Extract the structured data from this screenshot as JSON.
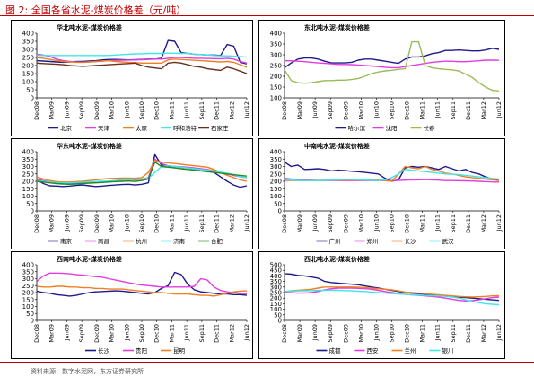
{
  "figure": {
    "title": "图 2:  全国各省水泥-煤炭价格差（元/吨）",
    "source": "资料来源：数字水泥网，东方证券研究所"
  },
  "colors": {
    "title_red": "#c00000",
    "navy": "#1f1a8c",
    "magenta": "#e23ce0",
    "orange": "#f07f23",
    "cyan": "#3ee6ea",
    "maroon": "#6b2e1f",
    "olive": "#9bbb59",
    "green": "#228b22"
  },
  "chart_data": [
    {
      "id": "north",
      "type": "line",
      "title": "华北吨水泥-煤炭价格差",
      "ylim": [
        0,
        400
      ],
      "yticks": [
        0,
        50,
        100,
        150,
        200,
        250,
        300,
        350,
        400
      ],
      "xticks": [
        "Dec08",
        "Mar09",
        "Jun09",
        "Sep09",
        "Dec09",
        "Mar10",
        "Jun10",
        "Sep10",
        "Dec10",
        "Mar11",
        "Jun11",
        "Sep11",
        "Dec11",
        "Mar12",
        "Jun12"
      ],
      "series": [
        {
          "name": "北京",
          "color": "#1f1a8c",
          "values": [
            230,
            228,
            225,
            222,
            220,
            222,
            225,
            225,
            228,
            230,
            235,
            238,
            238,
            236,
            235,
            236,
            238,
            240,
            240,
            245,
            355,
            350,
            280,
            275,
            270,
            268,
            265,
            265,
            262,
            330,
            320,
            220,
            210
          ]
        },
        {
          "name": "天津",
          "color": "#e23ce0",
          "values": [
            270,
            265,
            255,
            240,
            230,
            225,
            222,
            220,
            222,
            225,
            228,
            230,
            232,
            233,
            234,
            235,
            236,
            238,
            240,
            240,
            245,
            250,
            250,
            248,
            245,
            245,
            244,
            243,
            242,
            245,
            240,
            225,
            215
          ]
        },
        {
          "name": "太原",
          "color": "#f07f23",
          "values": [
            250,
            245,
            238,
            230,
            225,
            222,
            220,
            220,
            222,
            225,
            228,
            230,
            225,
            222,
            220,
            218,
            215,
            215,
            215,
            215,
            235,
            240,
            238,
            235,
            232,
            230,
            228,
            225,
            222,
            225,
            220,
            205,
            190
          ]
        },
        {
          "name": "呼和浩特",
          "color": "#3ee6ea",
          "values": [
            262,
            262,
            262,
            262,
            262,
            262,
            262,
            262,
            262,
            262,
            262,
            262,
            265,
            268,
            270,
            272,
            273,
            275,
            275,
            275,
            276,
            276,
            275,
            275,
            270,
            268,
            265,
            262,
            260,
            260,
            258,
            255,
            252
          ]
        },
        {
          "name": "石家庄",
          "color": "#6b2e1f",
          "values": [
            215,
            212,
            210,
            208,
            205,
            200,
            198,
            195,
            198,
            200,
            202,
            205,
            208,
            210,
            212,
            215,
            200,
            190,
            185,
            180,
            215,
            220,
            215,
            205,
            195,
            190,
            180,
            175,
            170,
            190,
            180,
            165,
            150
          ]
        }
      ]
    },
    {
      "id": "northeast",
      "type": "line",
      "title": "东北吨水泥-煤炭价格差",
      "ylim": [
        100,
        400
      ],
      "yticks": [
        100,
        150,
        200,
        250,
        300,
        350,
        400
      ],
      "xticks": [
        "Dec08",
        "Mar09",
        "Jun09",
        "Sep09",
        "Dec09",
        "Mar10",
        "Jun10",
        "Sep10",
        "Dec10",
        "Mar11",
        "Jun11",
        "Sep11",
        "Dec11",
        "Mar12",
        "Jun12"
      ],
      "series": [
        {
          "name": "哈尔滨",
          "color": "#1f1a8c",
          "values": [
            240,
            262,
            280,
            285,
            285,
            280,
            270,
            262,
            262,
            262,
            265,
            275,
            280,
            280,
            275,
            270,
            265,
            260,
            280,
            290,
            290,
            295,
            305,
            310,
            320,
            320,
            322,
            320,
            318,
            318,
            322,
            330,
            325
          ]
        },
        {
          "name": "沈阳",
          "color": "#e23ce0",
          "values": [
            272,
            272,
            270,
            268,
            265,
            262,
            260,
            258,
            255,
            255,
            254,
            252,
            250,
            248,
            245,
            242,
            240,
            240,
            245,
            250,
            255,
            260,
            265,
            268,
            270,
            270,
            268,
            268,
            270,
            272,
            275,
            275,
            274
          ]
        },
        {
          "name": "长春",
          "color": "#9bbb59",
          "values": [
            230,
            180,
            170,
            168,
            170,
            175,
            180,
            180,
            182,
            182,
            185,
            190,
            200,
            212,
            220,
            225,
            228,
            232,
            235,
            360,
            360,
            250,
            240,
            235,
            232,
            230,
            225,
            210,
            195,
            170,
            150,
            135,
            132
          ]
        }
      ]
    },
    {
      "id": "east",
      "type": "line",
      "title": "华东吨水泥-煤炭价格差",
      "ylim": [
        0,
        400
      ],
      "yticks": [
        0,
        50,
        100,
        150,
        200,
        250,
        300,
        350,
        400
      ],
      "xticks": [
        "Dec08",
        "Mar09",
        "Jun09",
        "Sep09",
        "Dec09",
        "Mar10",
        "Jun10",
        "Sep10",
        "Dec10",
        "Mar11",
        "Jun11",
        "Sep11",
        "Dec11",
        "Mar12",
        "Jun12"
      ],
      "series": [
        {
          "name": "南京",
          "color": "#1f1a8c",
          "values": [
            210,
            185,
            170,
            168,
            165,
            168,
            172,
            175,
            170,
            165,
            168,
            172,
            175,
            178,
            180,
            175,
            180,
            190,
            380,
            310,
            300,
            300,
            295,
            290,
            285,
            280,
            275,
            260,
            230,
            200,
            175,
            160,
            170
          ]
        },
        {
          "name": "南昌",
          "color": "#e23ce0",
          "values": [
            215,
            205,
            195,
            188,
            185,
            185,
            188,
            190,
            192,
            195,
            198,
            200,
            205,
            210,
            212,
            210,
            215,
            225,
            350,
            320,
            305,
            300,
            298,
            295,
            290,
            285,
            280,
            270,
            260,
            250,
            240,
            230,
            225
          ]
        },
        {
          "name": "杭州",
          "color": "#f07f23",
          "values": [
            230,
            215,
            205,
            198,
            195,
            195,
            198,
            200,
            205,
            210,
            215,
            218,
            220,
            222,
            222,
            220,
            225,
            260,
            340,
            330,
            325,
            320,
            315,
            310,
            305,
            300,
            295,
            280,
            260,
            240,
            225,
            210,
            200
          ]
        },
        {
          "name": "济南",
          "color": "#3ee6ea",
          "values": [
            205,
            200,
            195,
            192,
            190,
            190,
            192,
            195,
            196,
            198,
            200,
            202,
            205,
            208,
            210,
            212,
            215,
            220,
            260,
            300,
            305,
            300,
            295,
            290,
            285,
            280,
            275,
            268,
            262,
            255,
            245,
            230,
            225
          ]
        },
        {
          "name": "合肥",
          "color": "#228b22",
          "values": [
            200,
            195,
            190,
            185,
            182,
            180,
            182,
            185,
            188,
            190,
            192,
            195,
            198,
            200,
            202,
            200,
            205,
            215,
            330,
            300,
            295,
            290,
            285,
            280,
            275,
            270,
            265,
            260,
            255,
            250,
            245,
            240,
            235
          ]
        }
      ]
    },
    {
      "id": "central_south",
      "type": "line",
      "title": "中南吨水泥-煤炭价格差",
      "ylim": [
        0,
        400
      ],
      "yticks": [
        0,
        50,
        100,
        150,
        200,
        250,
        300,
        350,
        400
      ],
      "xticks": [
        "Dec08",
        "Mar09",
        "Jun09",
        "Sep09",
        "Dec09",
        "Mar10",
        "Jun10",
        "Sep10",
        "Dec10",
        "Mar11",
        "Jun11",
        "Sep11",
        "Dec11",
        "Mar12",
        "Jun12"
      ],
      "series": [
        {
          "name": "广州",
          "color": "#1f1a8c",
          "values": [
            330,
            300,
            310,
            280,
            282,
            285,
            280,
            270,
            275,
            272,
            268,
            265,
            260,
            255,
            250,
            220,
            200,
            210,
            290,
            300,
            295,
            300,
            290,
            280,
            300,
            285,
            270,
            280,
            260,
            250,
            230,
            215,
            205
          ]
        },
        {
          "name": "郑州",
          "color": "#e23ce0",
          "values": [
            220,
            215,
            212,
            210,
            208,
            205,
            205,
            205,
            205,
            205,
            205,
            205,
            205,
            205,
            205,
            205,
            205,
            206,
            208,
            210,
            210,
            212,
            210,
            208,
            205,
            205,
            204,
            203,
            202,
            200,
            198,
            196,
            195
          ]
        },
        {
          "name": "长沙",
          "color": "#f07f23",
          "values": [
            205,
            205,
            205,
            205,
            206,
            206,
            207,
            207,
            208,
            208,
            208,
            208,
            208,
            208,
            208,
            205,
            200,
            250,
            300,
            290,
            285,
            300,
            280,
            270,
            255,
            250,
            240,
            230,
            225,
            220,
            215,
            210,
            205
          ]
        },
        {
          "name": "武汉",
          "color": "#3ee6ea",
          "values": [
            210,
            208,
            206,
            205,
            205,
            205,
            206,
            208,
            210,
            212,
            212,
            210,
            208,
            206,
            205,
            210,
            225,
            250,
            280,
            275,
            270,
            265,
            260,
            255,
            250,
            248,
            245,
            240,
            235,
            230,
            225,
            220,
            215
          ]
        }
      ]
    },
    {
      "id": "southwest",
      "type": "line",
      "title": "西南吨水泥-煤炭价格差",
      "ylim": [
        0,
        400
      ],
      "yticks": [
        0,
        50,
        100,
        150,
        200,
        250,
        300,
        350,
        400
      ],
      "xticks": [
        "Dec08",
        "Mar09",
        "Jun09",
        "Sep09",
        "Dec09",
        "Mar10",
        "Jun10",
        "Sep10",
        "Dec10",
        "Mar11",
        "Jun11",
        "Sep11",
        "Dec11",
        "Mar12",
        "Jun12"
      ],
      "series": [
        {
          "name": "长沙",
          "color": "#1f1a8c",
          "values": [
            210,
            200,
            195,
            185,
            180,
            175,
            180,
            190,
            200,
            205,
            208,
            210,
            212,
            210,
            205,
            200,
            195,
            190,
            200,
            230,
            250,
            345,
            330,
            260,
            220,
            205,
            200,
            195,
            190,
            190,
            185,
            185,
            180
          ]
        },
        {
          "name": "贵阳",
          "color": "#e23ce0",
          "values": [
            280,
            320,
            340,
            340,
            338,
            335,
            330,
            325,
            320,
            315,
            310,
            300,
            290,
            280,
            270,
            262,
            255,
            250,
            245,
            240,
            240,
            240,
            240,
            240,
            245,
            300,
            290,
            240,
            215,
            205,
            200,
            195,
            190
          ]
        },
        {
          "name": "昆明",
          "color": "#f07f23",
          "values": [
            245,
            240,
            240,
            245,
            245,
            240,
            240,
            235,
            235,
            230,
            230,
            225,
            225,
            225,
            220,
            215,
            210,
            205,
            200,
            200,
            195,
            190,
            190,
            190,
            185,
            180,
            180,
            175,
            185,
            195,
            205,
            210,
            212
          ]
        }
      ]
    },
    {
      "id": "northwest",
      "type": "line",
      "title": "西北吨水泥-煤炭价格差",
      "ylim": [
        0,
        500
      ],
      "yticks": [
        0,
        50,
        100,
        150,
        200,
        250,
        300,
        350,
        400,
        450,
        500
      ],
      "xticks": [
        "Dec08",
        "Mar09",
        "Jun09",
        "Sep09",
        "Dec09",
        "Mar10",
        "Jun10",
        "Sep10",
        "Dec10",
        "Mar11",
        "Jun11",
        "Sep11",
        "Dec11",
        "Mar12",
        "Jun12"
      ],
      "series": [
        {
          "name": "成都",
          "color": "#1f1a8c",
          "values": [
            420,
            415,
            405,
            400,
            390,
            380,
            350,
            340,
            335,
            330,
            325,
            320,
            310,
            300,
            290,
            280,
            270,
            260,
            250,
            245,
            240,
            235,
            230,
            225,
            220,
            215,
            210,
            205,
            200,
            195,
            190,
            185,
            180
          ]
        },
        {
          "name": "西安",
          "color": "#e23ce0",
          "values": [
            250,
            248,
            245,
            245,
            250,
            260,
            275,
            285,
            290,
            290,
            290,
            288,
            285,
            280,
            270,
            260,
            250,
            240,
            235,
            230,
            225,
            220,
            215,
            210,
            200,
            190,
            180,
            175,
            178,
            185,
            195,
            205,
            210
          ]
        },
        {
          "name": "兰州",
          "color": "#f07f23",
          "values": [
            260,
            265,
            270,
            275,
            280,
            290,
            300,
            300,
            300,
            300,
            300,
            298,
            295,
            290,
            285,
            280,
            275,
            265,
            255,
            250,
            245,
            240,
            235,
            230,
            225,
            220,
            215,
            212,
            210,
            212,
            215,
            220,
            222
          ]
        },
        {
          "name": "银川",
          "color": "#3ee6ea",
          "values": [
            260,
            262,
            265,
            265,
            268,
            270,
            270,
            272,
            270,
            268,
            265,
            262,
            260,
            255,
            250,
            245,
            240,
            238,
            235,
            230,
            228,
            225,
            222,
            220,
            215,
            210,
            200,
            185,
            170,
            160,
            150,
            145,
            140
          ]
        }
      ]
    }
  ]
}
